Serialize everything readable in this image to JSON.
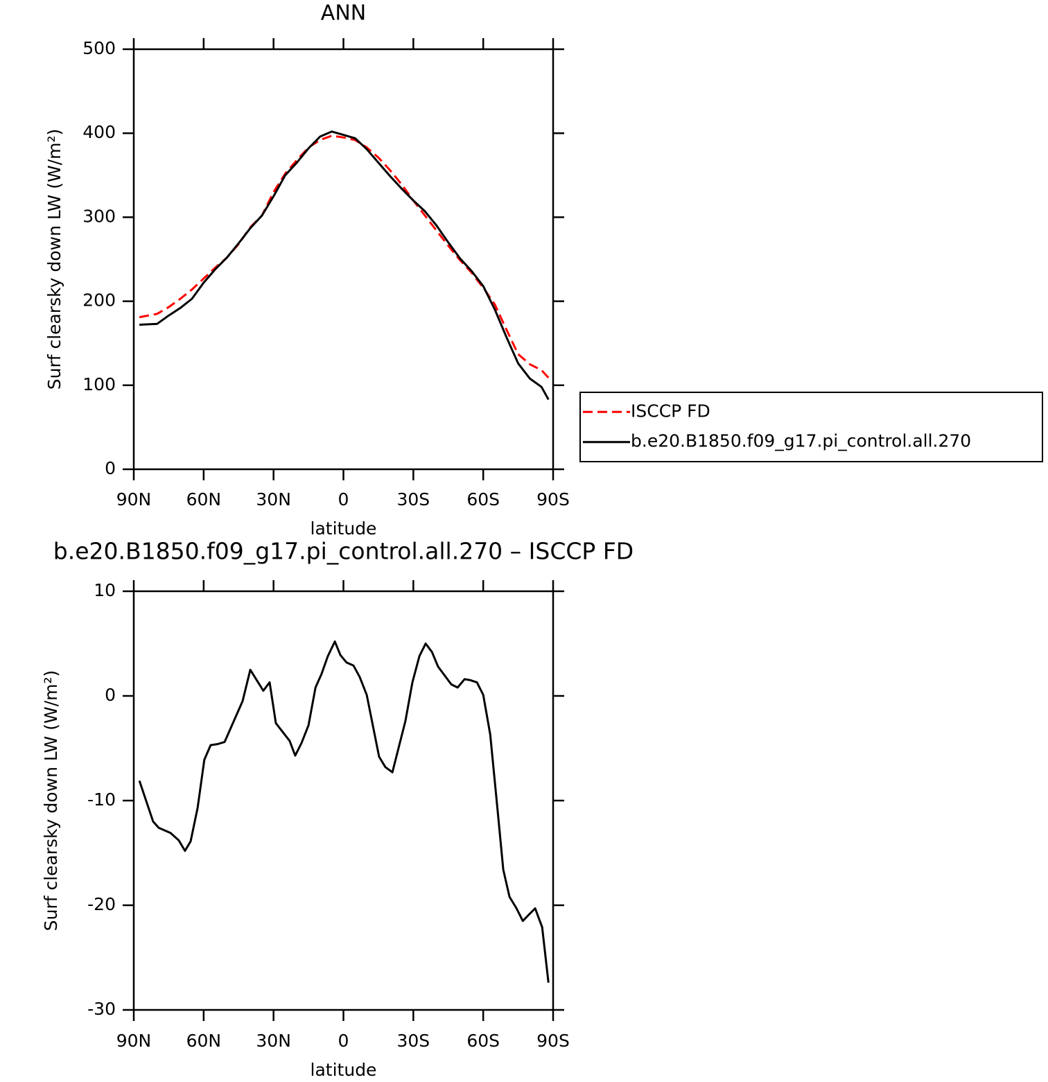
{
  "chart_data": [
    {
      "type": "line",
      "title": "ANN",
      "xlabel": "latitude",
      "ylabel": "Surf clearsky down LW (W/m²)",
      "x": [
        87.6,
        80,
        75,
        70,
        65,
        60,
        55,
        50,
        45,
        40,
        35,
        30,
        25,
        20,
        15,
        10,
        5,
        0,
        -5,
        -10,
        -15,
        -20,
        -25,
        -30,
        -35,
        -40,
        -45,
        -50,
        -55,
        -60,
        -65,
        -70,
        -75,
        -80,
        -85,
        -88
      ],
      "series": [
        {
          "name": "ISCCP FD",
          "color": "#ff0000",
          "style": "dashed",
          "values": [
            181,
            185,
            193,
            203,
            214,
            227,
            240,
            252,
            268,
            288,
            302,
            330,
            352,
            368,
            383,
            392,
            397,
            395,
            392,
            383,
            371,
            356,
            339,
            320,
            302,
            284,
            266,
            249,
            234,
            216,
            196,
            166,
            137,
            125,
            118,
            109
          ]
        },
        {
          "name": "b.e20.B1850.f09_g17.pi_control.all.270",
          "color": "#000000",
          "style": "solid",
          "values": [
            172,
            173,
            183,
            192,
            203,
            222,
            238,
            252,
            269,
            287,
            302,
            325,
            350,
            365,
            382,
            396,
            402,
            398,
            394,
            381,
            365,
            349,
            334,
            320,
            307,
            290,
            270,
            251,
            236,
            218,
            190,
            157,
            126,
            108,
            98,
            83
          ]
        }
      ],
      "xlim": [
        90,
        -90
      ],
      "xticks": [
        {
          "value": 90,
          "label": "90N"
        },
        {
          "value": 60,
          "label": "60N"
        },
        {
          "value": 30,
          "label": "30N"
        },
        0,
        {
          "value": -30,
          "label": "30S"
        },
        {
          "value": -60,
          "label": "60S"
        },
        {
          "value": -90,
          "label": "90S"
        }
      ],
      "ylim": [
        0,
        500
      ],
      "yticks": [
        0,
        100,
        200,
        300,
        400,
        500
      ],
      "legend": "outside right",
      "grid": false
    },
    {
      "type": "line",
      "title": "b.e20.B1850.f09_g17.pi_control.all.270 – ISCCP FD",
      "xlabel": "latitude",
      "ylabel": "Surf clearsky down LW (W/m²)",
      "x": [
        87.6,
        81.7,
        79.3,
        74.2,
        70.7,
        68.0,
        65.6,
        62.6,
        59.7,
        57.0,
        54.0,
        51.0,
        43.3,
        40.0,
        34.4,
        31.7,
        29.0,
        23.1,
        20.7,
        18.0,
        15.0,
        12.0,
        9.4,
        6.7,
        3.7,
        1.3,
        -1.3,
        -4.3,
        -7.0,
        -10.0,
        -15.3,
        -18.0,
        -21.0,
        -26.6,
        -29.6,
        -32.6,
        -35.3,
        -38.0,
        -40.6,
        -46.3,
        -49.0,
        -52.0,
        -54.6,
        -57.3,
        -60.0,
        -63.0,
        -65.9,
        -68.6,
        -71.3,
        -74.3,
        -77.0,
        -79.6,
        -82.3,
        -85.3,
        -88.0
      ],
      "values": [
        -8.1,
        -12.0,
        -12.6,
        -13.1,
        -13.8,
        -14.8,
        -13.9,
        -10.7,
        -6.1,
        -4.7,
        -4.6,
        -4.4,
        -0.5,
        2.5,
        0.5,
        1.3,
        -2.6,
        -4.3,
        -5.7,
        -4.5,
        -2.8,
        0.8,
        2.1,
        3.8,
        5.2,
        3.9,
        3.2,
        2.9,
        1.8,
        0.1,
        -5.8,
        -6.8,
        -7.3,
        -2.4,
        1.3,
        3.8,
        5.0,
        4.2,
        2.8,
        1.1,
        0.8,
        1.6,
        1.5,
        1.3,
        0.1,
        -3.7,
        -10.3,
        -16.6,
        -19.2,
        -20.3,
        -21.5,
        -20.9,
        -20.3,
        -22.1,
        -27.4
      ],
      "color": "#000000",
      "xlim": [
        90,
        -90
      ],
      "xticks": [
        {
          "value": 90,
          "label": "90N"
        },
        {
          "value": 60,
          "label": "60N"
        },
        {
          "value": 30,
          "label": "30N"
        },
        0,
        {
          "value": -30,
          "label": "30S"
        },
        {
          "value": -60,
          "label": "60S"
        },
        {
          "value": -90,
          "label": "90S"
        }
      ],
      "ylim": [
        -30,
        10
      ],
      "yticks": [
        -30,
        -20,
        -10,
        0,
        10
      ],
      "grid": false
    }
  ]
}
